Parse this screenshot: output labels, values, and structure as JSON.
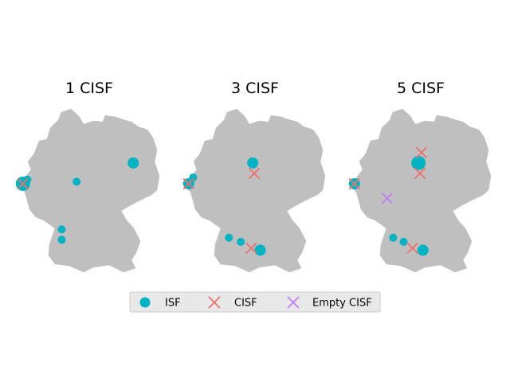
{
  "panels": [
    {
      "title": "1 CISF",
      "isf": [
        {
          "lon": 6.0,
          "lat": 51.5,
          "size": "large"
        },
        {
          "lon": 6.3,
          "lat": 51.7,
          "size": "small"
        },
        {
          "lon": 13.4,
          "lat": 52.5,
          "size": "medium"
        },
        {
          "lon": 9.6,
          "lat": 51.6,
          "size": "small"
        },
        {
          "lon": 8.6,
          "lat": 49.3,
          "size": "small"
        },
        {
          "lon": 8.6,
          "lat": 48.8,
          "size": "small"
        }
      ],
      "cisf": [
        {
          "lon": 6.0,
          "lat": 51.5
        }
      ],
      "empty_cisf": []
    },
    {
      "title": "3 CISF",
      "isf": [
        {
          "lon": 6.0,
          "lat": 51.5,
          "size": "medium"
        },
        {
          "lon": 6.3,
          "lat": 51.8,
          "size": "small"
        },
        {
          "lon": 10.3,
          "lat": 52.5,
          "size": "medium"
        },
        {
          "lon": 8.7,
          "lat": 48.9,
          "size": "small"
        },
        {
          "lon": 9.5,
          "lat": 48.7,
          "size": "small"
        },
        {
          "lon": 10.8,
          "lat": 48.3,
          "size": "medium"
        }
      ],
      "cisf": [
        {
          "lon": 6.0,
          "lat": 51.5
        },
        {
          "lon": 10.4,
          "lat": 52.0
        },
        {
          "lon": 10.2,
          "lat": 48.4
        }
      ],
      "empty_cisf": []
    },
    {
      "title": "5 CISF",
      "isf": [
        {
          "lon": 6.0,
          "lat": 51.5,
          "size": "medium"
        },
        {
          "lon": 10.3,
          "lat": 52.5,
          "size": "large"
        },
        {
          "lon": 8.6,
          "lat": 48.9,
          "size": "small"
        },
        {
          "lon": 9.3,
          "lat": 48.7,
          "size": "small"
        },
        {
          "lon": 10.6,
          "lat": 48.3,
          "size": "medium"
        }
      ],
      "cisf": [
        {
          "lon": 6.0,
          "lat": 51.5
        },
        {
          "lon": 10.5,
          "lat": 53.0
        },
        {
          "lon": 10.4,
          "lat": 52.0
        },
        {
          "lon": 9.9,
          "lat": 48.4
        }
      ],
      "empty_cisf": [
        {
          "lon": 8.2,
          "lat": 50.8
        }
      ]
    }
  ],
  "legend": {
    "items": [
      {
        "label": "ISF",
        "marker": "circle"
      },
      {
        "label": "CISF",
        "marker": "x"
      },
      {
        "label": "Empty CISF",
        "marker": "x"
      }
    ]
  },
  "colors": {
    "country": "#bfbfbf",
    "isf": "#00b3c3",
    "cisf": "#f0706a",
    "empty_cisf": "#bf7ff5",
    "legend_bg": "#e8e8e8"
  }
}
